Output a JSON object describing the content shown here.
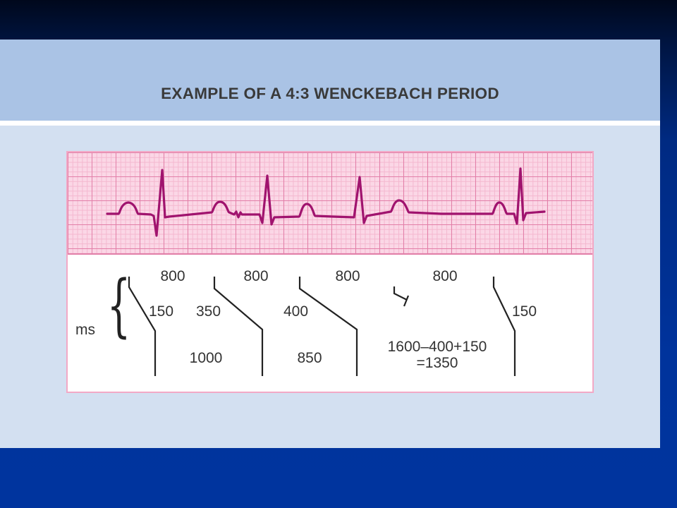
{
  "title": "EXAMPLE OF A 4:3 WENCKEBACH PERIOD",
  "colors": {
    "slide_background": "#00339c",
    "panel_background": "#d3e0f1",
    "title_band": "#aac3e5",
    "ecg_grid_major": "#e27fa8",
    "ecg_grid_minor": "#f4b7cf",
    "ecg_trace": "#a0136e",
    "ladder_line": "#222222"
  },
  "ladder_diagram": {
    "unit_label": "ms",
    "atrial_intervals": [
      "800",
      "800",
      "800",
      "800"
    ],
    "av_conduction_times": [
      "150",
      "350",
      "400",
      "150"
    ],
    "ventricular_intervals": [
      "1000",
      "850"
    ],
    "pause_formula": [
      "1600–400+150",
      "=1350"
    ]
  },
  "ecg_strip": {
    "description_type": "ecg-rhythm-strip",
    "beats_conducted": 3,
    "p_waves": 5
  }
}
